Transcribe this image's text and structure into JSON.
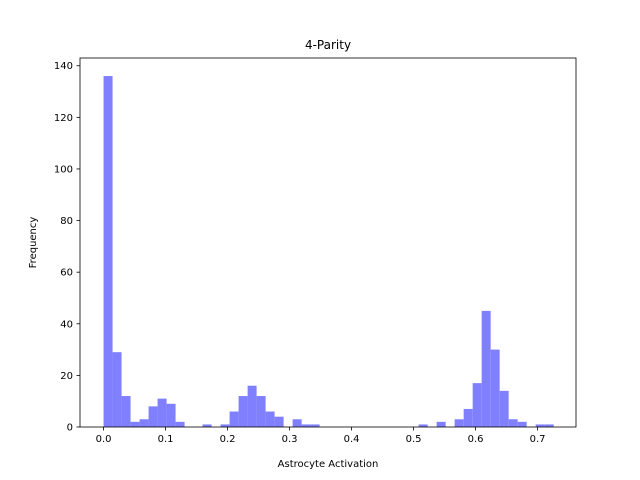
{
  "chart_data": {
    "type": "bar",
    "subtype": "histogram",
    "title": "4-Parity",
    "xlabel": "Astrocyte Activation",
    "ylabel": "Frequency",
    "xlim": [
      -0.038,
      0.762
    ],
    "ylim": [
      0,
      143
    ],
    "x_ticks": [
      0.0,
      0.1,
      0.2,
      0.3,
      0.4,
      0.5,
      0.6,
      0.7
    ],
    "x_tick_labels": [
      "0.0",
      "0.1",
      "0.2",
      "0.3",
      "0.4",
      "0.5",
      "0.6",
      "0.7"
    ],
    "y_ticks": [
      0,
      20,
      40,
      60,
      80,
      100,
      120,
      140
    ],
    "y_tick_labels": [
      "0",
      "20",
      "40",
      "60",
      "80",
      "100",
      "120",
      "140"
    ],
    "bin_start": 0.0,
    "bin_width": 0.01452,
    "counts": [
      136,
      29,
      12,
      2,
      3,
      8,
      11,
      9,
      2,
      0,
      0,
      1,
      0,
      1,
      6,
      12,
      16,
      12,
      6,
      4,
      0,
      3,
      1,
      1,
      0,
      0,
      0,
      0,
      0,
      0,
      0,
      0,
      0,
      0,
      0,
      1,
      0,
      2,
      0,
      3,
      7,
      17,
      45,
      30,
      14,
      3,
      2,
      0,
      1,
      1
    ],
    "bar_color": "#8080ff",
    "grid": false,
    "legend": "none"
  }
}
